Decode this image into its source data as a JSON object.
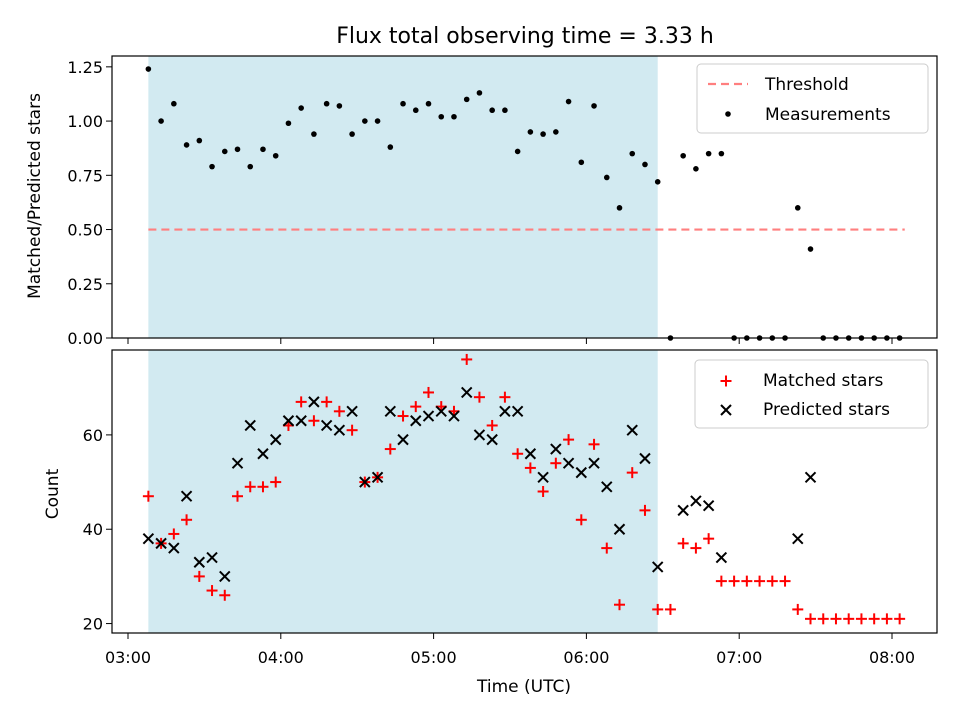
{
  "figure": {
    "title": "Flux total observing time = 3.33 h"
  },
  "chart_data": [
    {
      "type": "scatter",
      "panel": "top",
      "title": "Flux total observing time = 3.33 h",
      "xlabel": "",
      "ylabel": "Matched/Predicted stars",
      "xlim": [
        "03:00",
        "08:00"
      ],
      "ylim": [
        0.0,
        1.3
      ],
      "yticks": [
        0.0,
        0.25,
        0.5,
        0.75,
        1.0,
        1.25
      ],
      "ytick_labels": [
        "0.00",
        "0.25",
        "0.50",
        "0.75",
        "1.00",
        "1.25"
      ],
      "shaded_interval": {
        "start": "03:08",
        "end": "06:28",
        "color": "#add8e6"
      },
      "legend": {
        "position": "upper right",
        "entries": [
          "Threshold",
          "Measurements"
        ]
      },
      "series": [
        {
          "name": "Threshold",
          "kind": "dashed-line",
          "color": "#ff7f7f",
          "x": [
            "03:08",
            "08:05"
          ],
          "y": [
            0.5,
            0.5
          ]
        },
        {
          "name": "Measurements",
          "kind": "dots",
          "color": "#000000",
          "points": [
            [
              "03:08",
              1.24
            ],
            [
              "03:13",
              1.0
            ],
            [
              "03:18",
              1.08
            ],
            [
              "03:23",
              0.89
            ],
            [
              "03:28",
              0.91
            ],
            [
              "03:33",
              0.79
            ],
            [
              "03:38",
              0.86
            ],
            [
              "03:43",
              0.87
            ],
            [
              "03:48",
              0.79
            ],
            [
              "03:53",
              0.87
            ],
            [
              "03:58",
              0.84
            ],
            [
              "04:03",
              0.99
            ],
            [
              "04:08",
              1.06
            ],
            [
              "04:13",
              0.94
            ],
            [
              "04:18",
              1.08
            ],
            [
              "04:23",
              1.07
            ],
            [
              "04:28",
              0.94
            ],
            [
              "04:33",
              1.0
            ],
            [
              "04:38",
              1.0
            ],
            [
              "04:43",
              0.88
            ],
            [
              "04:48",
              1.08
            ],
            [
              "04:53",
              1.05
            ],
            [
              "04:58",
              1.08
            ],
            [
              "05:03",
              1.02
            ],
            [
              "05:08",
              1.02
            ],
            [
              "05:13",
              1.1
            ],
            [
              "05:18",
              1.13
            ],
            [
              "05:23",
              1.05
            ],
            [
              "05:28",
              1.05
            ],
            [
              "05:33",
              0.86
            ],
            [
              "05:38",
              0.95
            ],
            [
              "05:43",
              0.94
            ],
            [
              "05:48",
              0.95
            ],
            [
              "05:53",
              1.09
            ],
            [
              "05:58",
              0.81
            ],
            [
              "06:03",
              1.07
            ],
            [
              "06:08",
              0.74
            ],
            [
              "06:13",
              0.6
            ],
            [
              "06:18",
              0.85
            ],
            [
              "06:23",
              0.8
            ],
            [
              "06:28",
              0.72
            ],
            [
              "06:33",
              0.0
            ],
            [
              "06:38",
              0.84
            ],
            [
              "06:43",
              0.78
            ],
            [
              "06:48",
              0.85
            ],
            [
              "06:53",
              0.85
            ],
            [
              "06:58",
              0.0
            ],
            [
              "07:03",
              0.0
            ],
            [
              "07:08",
              0.0
            ],
            [
              "07:13",
              0.0
            ],
            [
              "07:18",
              0.0
            ],
            [
              "07:23",
              0.6
            ],
            [
              "07:28",
              0.41
            ],
            [
              "07:33",
              0.0
            ],
            [
              "07:38",
              0.0
            ],
            [
              "07:43",
              0.0
            ],
            [
              "07:48",
              0.0
            ],
            [
              "07:53",
              0.0
            ],
            [
              "07:58",
              0.0
            ],
            [
              "08:03",
              0.0
            ]
          ]
        }
      ]
    },
    {
      "type": "scatter",
      "panel": "bottom",
      "xlabel": "Time (UTC)",
      "ylabel": "Count",
      "xlim": [
        "03:00",
        "08:00"
      ],
      "xticks": [
        "03:00",
        "04:00",
        "05:00",
        "06:00",
        "07:00",
        "08:00"
      ],
      "ylim": [
        18,
        78
      ],
      "yticks": [
        20,
        40,
        60
      ],
      "shaded_interval": {
        "start": "03:08",
        "end": "06:28",
        "color": "#add8e6"
      },
      "legend": {
        "position": "upper right",
        "entries": [
          "Matched stars",
          "Predicted stars"
        ]
      },
      "series": [
        {
          "name": "Matched stars",
          "marker": "plus",
          "color": "#ff0000",
          "points": [
            [
              "03:08",
              47
            ],
            [
              "03:13",
              37
            ],
            [
              "03:18",
              39
            ],
            [
              "03:23",
              42
            ],
            [
              "03:28",
              30
            ],
            [
              "03:33",
              27
            ],
            [
              "03:38",
              26
            ],
            [
              "03:43",
              47
            ],
            [
              "03:48",
              49
            ],
            [
              "03:53",
              49
            ],
            [
              "03:58",
              50
            ],
            [
              "04:03",
              62
            ],
            [
              "04:08",
              67
            ],
            [
              "04:13",
              63
            ],
            [
              "04:18",
              67
            ],
            [
              "04:23",
              65
            ],
            [
              "04:28",
              61
            ],
            [
              "04:33",
              50
            ],
            [
              "04:38",
              51
            ],
            [
              "04:43",
              57
            ],
            [
              "04:48",
              64
            ],
            [
              "04:53",
              66
            ],
            [
              "04:58",
              69
            ],
            [
              "05:03",
              66
            ],
            [
              "05:08",
              65
            ],
            [
              "05:13",
              76
            ],
            [
              "05:18",
              68
            ],
            [
              "05:23",
              62
            ],
            [
              "05:28",
              68
            ],
            [
              "05:33",
              56
            ],
            [
              "05:38",
              53
            ],
            [
              "05:43",
              48
            ],
            [
              "05:48",
              54
            ],
            [
              "05:53",
              59
            ],
            [
              "05:58",
              42
            ],
            [
              "06:03",
              58
            ],
            [
              "06:08",
              36
            ],
            [
              "06:13",
              24
            ],
            [
              "06:18",
              52
            ],
            [
              "06:23",
              44
            ],
            [
              "06:28",
              23
            ],
            [
              "06:33",
              23
            ],
            [
              "06:38",
              37
            ],
            [
              "06:43",
              36
            ],
            [
              "06:48",
              38
            ],
            [
              "06:53",
              29
            ],
            [
              "06:58",
              29
            ],
            [
              "07:03",
              29
            ],
            [
              "07:08",
              29
            ],
            [
              "07:13",
              29
            ],
            [
              "07:18",
              29
            ],
            [
              "07:23",
              23
            ],
            [
              "07:28",
              21
            ],
            [
              "07:33",
              21
            ],
            [
              "07:38",
              21
            ],
            [
              "07:43",
              21
            ],
            [
              "07:48",
              21
            ],
            [
              "07:53",
              21
            ],
            [
              "07:58",
              21
            ],
            [
              "08:03",
              21
            ]
          ]
        },
        {
          "name": "Predicted stars",
          "marker": "x",
          "color": "#000000",
          "points": [
            [
              "03:08",
              38
            ],
            [
              "03:13",
              37
            ],
            [
              "03:18",
              36
            ],
            [
              "03:23",
              47
            ],
            [
              "03:28",
              33
            ],
            [
              "03:33",
              34
            ],
            [
              "03:38",
              30
            ],
            [
              "03:43",
              54
            ],
            [
              "03:48",
              62
            ],
            [
              "03:53",
              56
            ],
            [
              "03:58",
              59
            ],
            [
              "04:03",
              63
            ],
            [
              "04:08",
              63
            ],
            [
              "04:13",
              67
            ],
            [
              "04:18",
              62
            ],
            [
              "04:23",
              61
            ],
            [
              "04:28",
              65
            ],
            [
              "04:33",
              50
            ],
            [
              "04:38",
              51
            ],
            [
              "04:43",
              65
            ],
            [
              "04:48",
              59
            ],
            [
              "04:53",
              63
            ],
            [
              "04:58",
              64
            ],
            [
              "05:03",
              65
            ],
            [
              "05:08",
              64
            ],
            [
              "05:13",
              69
            ],
            [
              "05:18",
              60
            ],
            [
              "05:23",
              59
            ],
            [
              "05:28",
              65
            ],
            [
              "05:33",
              65
            ],
            [
              "05:38",
              56
            ],
            [
              "05:43",
              51
            ],
            [
              "05:48",
              57
            ],
            [
              "05:53",
              54
            ],
            [
              "05:58",
              52
            ],
            [
              "06:03",
              54
            ],
            [
              "06:08",
              49
            ],
            [
              "06:13",
              40
            ],
            [
              "06:18",
              61
            ],
            [
              "06:23",
              55
            ],
            [
              "06:28",
              32
            ],
            [
              "06:38",
              44
            ],
            [
              "06:43",
              46
            ],
            [
              "06:48",
              45
            ],
            [
              "06:53",
              34
            ],
            [
              "07:23",
              38
            ],
            [
              "07:28",
              51
            ]
          ]
        }
      ]
    }
  ]
}
